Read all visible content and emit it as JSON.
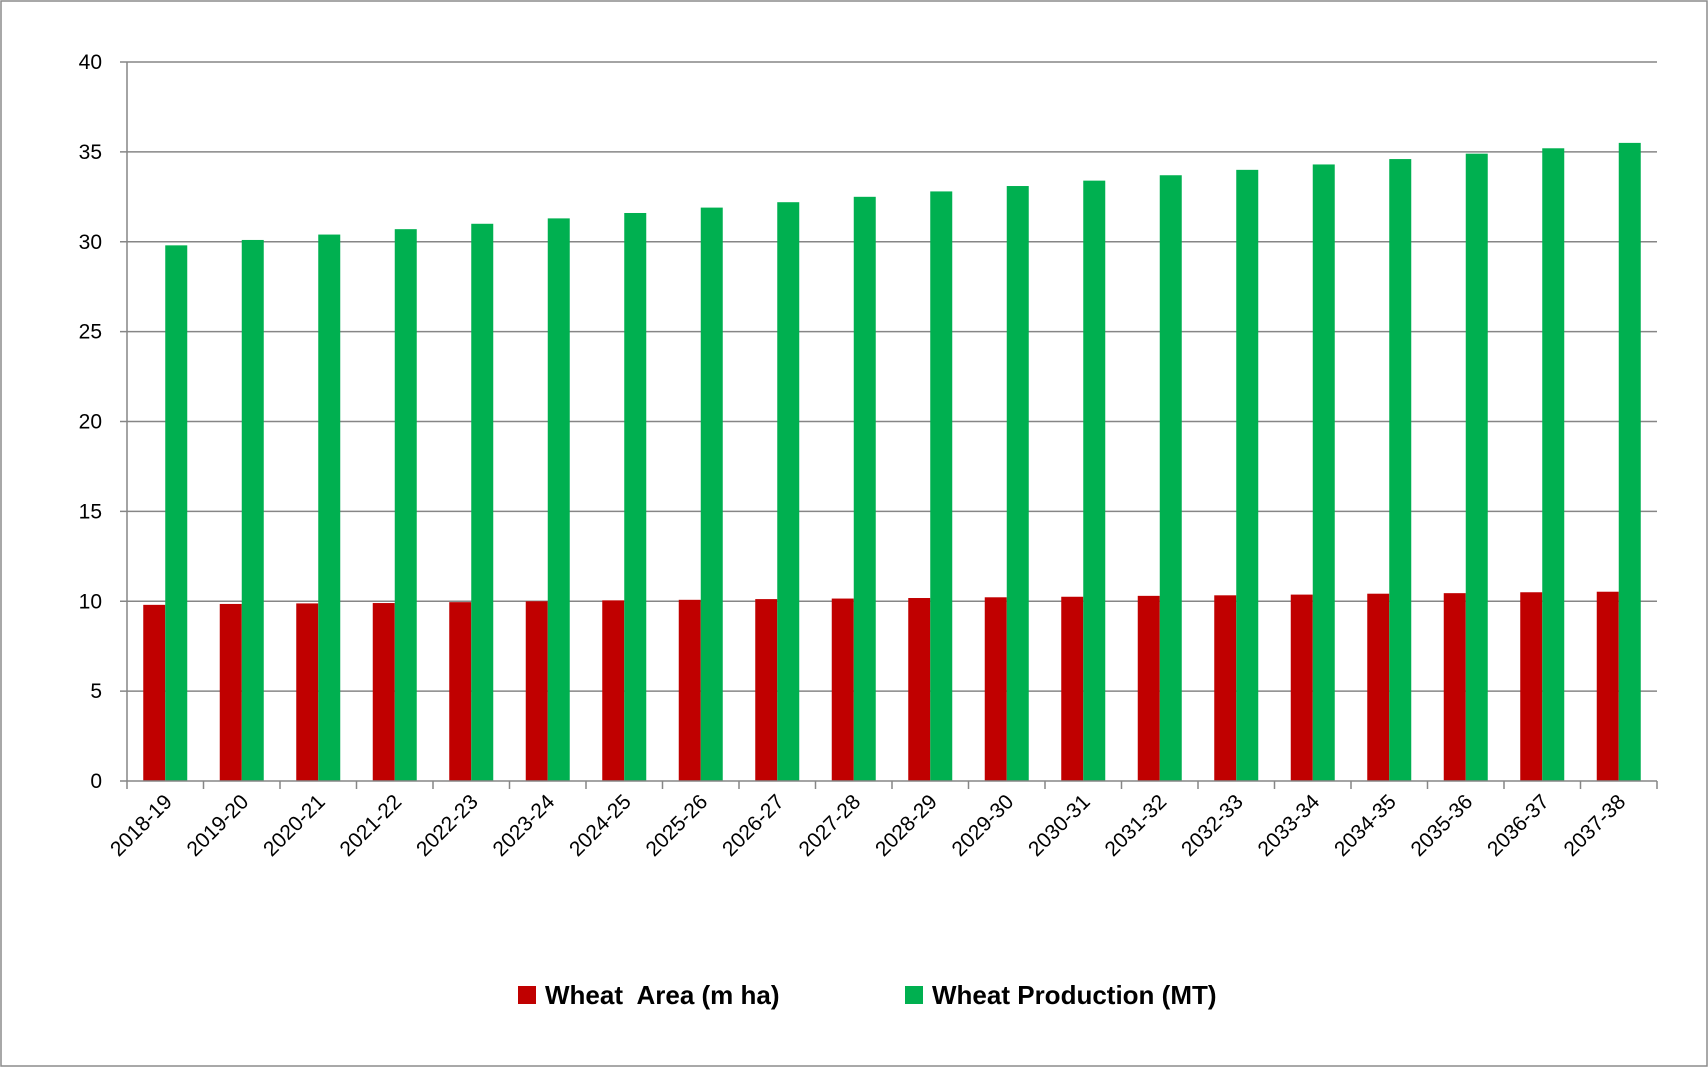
{
  "chart_data": {
    "type": "bar",
    "title": "",
    "xlabel": "",
    "ylabel": "",
    "ylim": [
      0,
      40
    ],
    "yticks": [
      0,
      5,
      10,
      15,
      20,
      25,
      30,
      35,
      40
    ],
    "grid": "horizontal",
    "legend_position": "bottom",
    "categories": [
      "2018-19",
      "2019-20",
      "2020-21",
      "2021-22",
      "2022-23",
      "2023-24",
      "2024-25",
      "2025-26",
      "2026-27",
      "2027-28",
      "2028-29",
      "2029-30",
      "2030-31",
      "2031-32",
      "2032-33",
      "2033-34",
      "2034-35",
      "2035-36",
      "2036-37",
      "2037-38"
    ],
    "series": [
      {
        "name": "Wheat  Area (m ha)",
        "color": "#C00000",
        "values": [
          9.8,
          9.85,
          9.88,
          9.9,
          9.95,
          10.0,
          10.05,
          10.08,
          10.12,
          10.15,
          10.18,
          10.22,
          10.25,
          10.3,
          10.33,
          10.37,
          10.42,
          10.45,
          10.5,
          10.53
        ]
      },
      {
        "name": "Wheat Production (MT)",
        "color": "#00B050",
        "values": [
          29.8,
          30.1,
          30.4,
          30.7,
          31.0,
          31.3,
          31.6,
          31.9,
          32.2,
          32.5,
          32.8,
          33.1,
          33.4,
          33.7,
          34.0,
          34.3,
          34.6,
          34.9,
          35.2,
          35.5
        ]
      }
    ]
  }
}
